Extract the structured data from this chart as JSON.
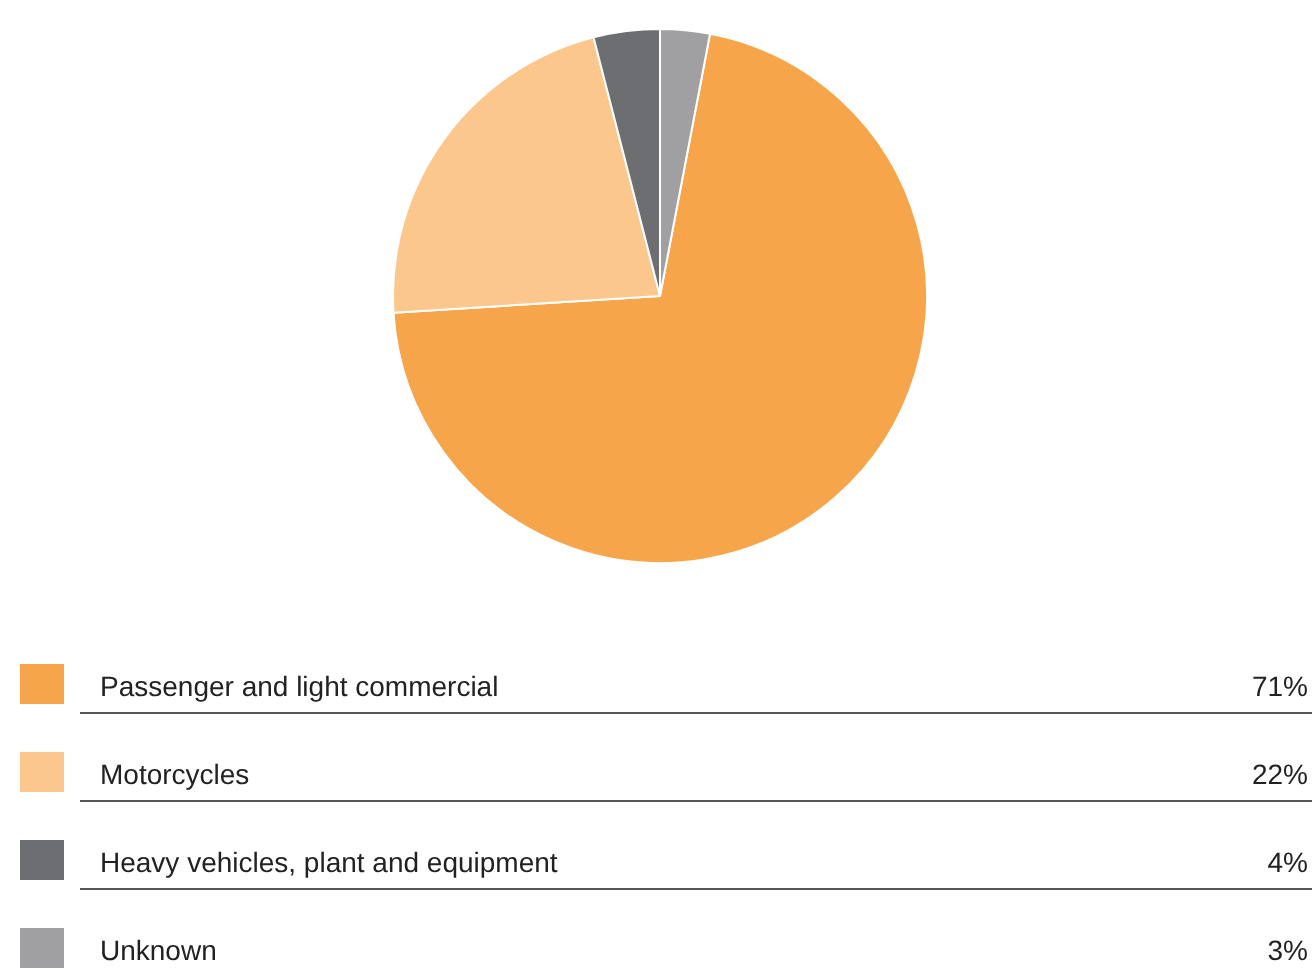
{
  "chart_data": {
    "type": "pie",
    "categories": [
      "Passenger and light commercial",
      "Motorcycles",
      "Heavy vehicles, plant and equipment",
      "Unknown"
    ],
    "values": [
      71,
      22,
      4,
      3
    ],
    "colors": [
      "#f7a54a",
      "#fbc78d",
      "#6d6e71",
      "#a0a0a3"
    ],
    "value_labels": [
      "71%",
      "22%",
      "4%",
      "3%"
    ],
    "legend": "bottom"
  }
}
